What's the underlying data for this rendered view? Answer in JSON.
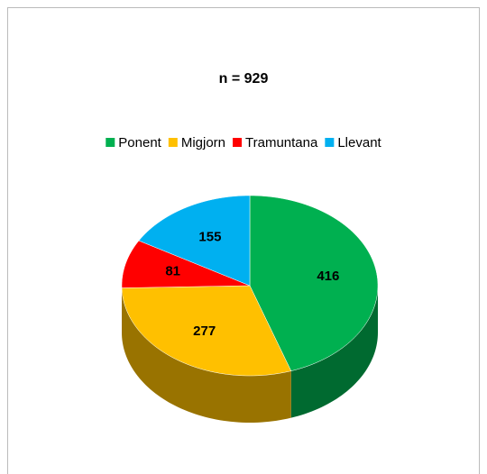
{
  "chart_data": {
    "type": "pie",
    "title": "n = 929",
    "categories": [
      "Ponent",
      "Migjorn",
      "Tramuntana",
      "Llevant"
    ],
    "values": [
      416,
      277,
      81,
      155
    ],
    "colors": [
      "#00b050",
      "#ffc000",
      "#ff0000",
      "#00b0f0"
    ],
    "legend": "top",
    "three_d": true
  }
}
